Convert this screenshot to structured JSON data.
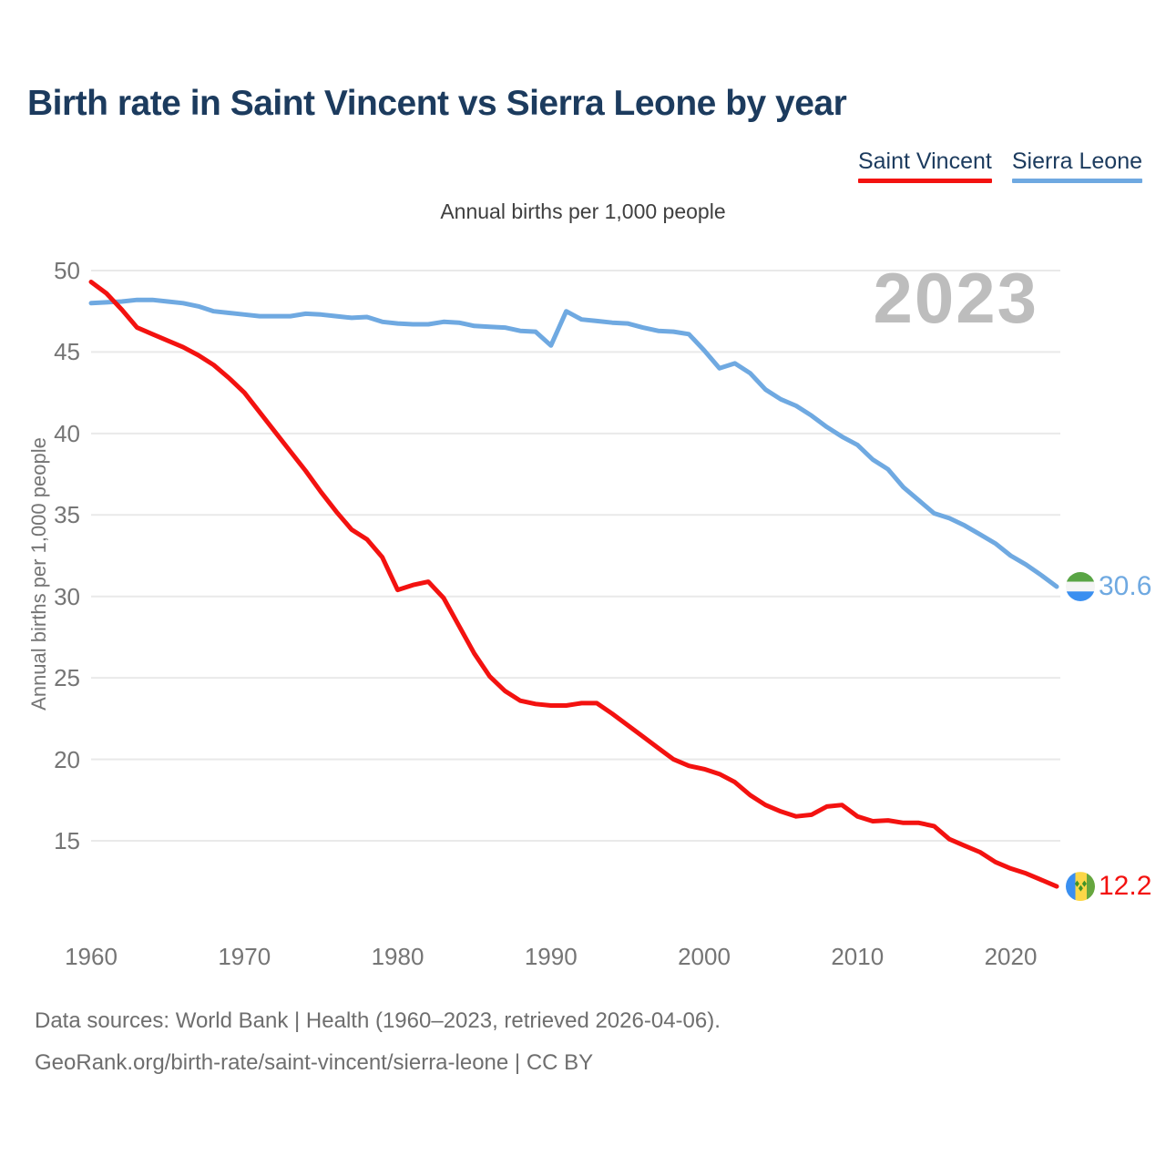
{
  "title": "Birth rate in Saint Vincent vs Sierra Leone by year",
  "subtitle": "Annual births per 1,000 people",
  "watermark": "2023",
  "legend": [
    {
      "label": "Saint Vincent",
      "color": "#f31210"
    },
    {
      "label": "Sierra Leone",
      "color": "#6fa9e1"
    }
  ],
  "footer": {
    "line1": "Data sources: World Bank | Health (1960–2023, retrieved 2026-04-06).",
    "line2": "GeoRank.org/birth-rate/saint-vincent/sierra-leone | CC BY"
  },
  "colors": {
    "saint_vincent": "#f31210",
    "sierra_leone": "#6fa9e1",
    "gridline": "#e9e9e9",
    "tick_text": "#757575",
    "watermark": "#bdbdbd",
    "title_text": "#1c3b5e"
  },
  "chart_data": {
    "type": "line",
    "title": "Birth rate in Saint Vincent vs Sierra Leone by year",
    "subtitle": "Annual births per 1,000 people",
    "xlabel": "",
    "ylabel": "Annual births per 1,000 people",
    "x_ticks": [
      1960,
      1970,
      1980,
      1990,
      2000,
      2010,
      2020
    ],
    "y_ticks": [
      50,
      45,
      40,
      35,
      30,
      25,
      20,
      15
    ],
    "ylim": [
      12,
      50
    ],
    "grid": "horizontal",
    "legend_position": "top-right",
    "x": [
      1960,
      1961,
      1962,
      1963,
      1964,
      1965,
      1966,
      1967,
      1968,
      1969,
      1970,
      1971,
      1972,
      1973,
      1974,
      1975,
      1976,
      1977,
      1978,
      1979,
      1980,
      1981,
      1982,
      1983,
      1984,
      1985,
      1986,
      1987,
      1988,
      1989,
      1990,
      1991,
      1992,
      1993,
      1994,
      1995,
      1996,
      1997,
      1998,
      1999,
      2000,
      2001,
      2002,
      2003,
      2004,
      2005,
      2006,
      2007,
      2008,
      2009,
      2010,
      2011,
      2012,
      2013,
      2014,
      2015,
      2016,
      2017,
      2018,
      2019,
      2020,
      2021,
      2022,
      2023
    ],
    "series": [
      {
        "name": "Saint Vincent",
        "color": "#f31210",
        "end_label": "12.2",
        "values": [
          49.3,
          48.6,
          47.6,
          46.5,
          46.1,
          45.7,
          45.3,
          44.8,
          44.2,
          43.4,
          42.5,
          41.3,
          40.1,
          38.9,
          37.7,
          36.4,
          35.2,
          34.1,
          33.5,
          32.4,
          30.4,
          30.7,
          30.9,
          29.9,
          28.2,
          26.5,
          25.1,
          24.2,
          23.6,
          23.4,
          23.3,
          23.3,
          23.45,
          23.45,
          22.8,
          22.1,
          21.4,
          20.7,
          20.0,
          19.6,
          19.4,
          19.1,
          18.6,
          17.8,
          17.2,
          16.8,
          16.5,
          16.6,
          17.1,
          17.2,
          16.5,
          16.2,
          16.25,
          16.1,
          16.1,
          15.9,
          15.1,
          14.7,
          14.3,
          13.7,
          13.3,
          13.0,
          12.6,
          12.2
        ]
      },
      {
        "name": "Sierra Leone",
        "color": "#6fa9e1",
        "end_label": "30.6",
        "values": [
          48.0,
          48.05,
          48.1,
          48.2,
          48.2,
          48.1,
          48.0,
          47.8,
          47.5,
          47.4,
          47.3,
          47.2,
          47.2,
          47.2,
          47.35,
          47.3,
          47.2,
          47.1,
          47.15,
          46.85,
          46.75,
          46.7,
          46.7,
          46.85,
          46.8,
          46.6,
          46.55,
          46.5,
          46.3,
          46.25,
          45.4,
          47.5,
          47.0,
          46.9,
          46.8,
          46.75,
          46.5,
          46.3,
          46.25,
          46.1,
          45.1,
          44.0,
          44.3,
          43.7,
          42.7,
          42.1,
          41.7,
          41.1,
          40.4,
          39.8,
          39.3,
          38.4,
          37.8,
          36.7,
          35.9,
          35.1,
          34.8,
          34.35,
          33.8,
          33.25,
          32.5,
          31.95,
          31.3,
          30.6
        ]
      }
    ]
  }
}
